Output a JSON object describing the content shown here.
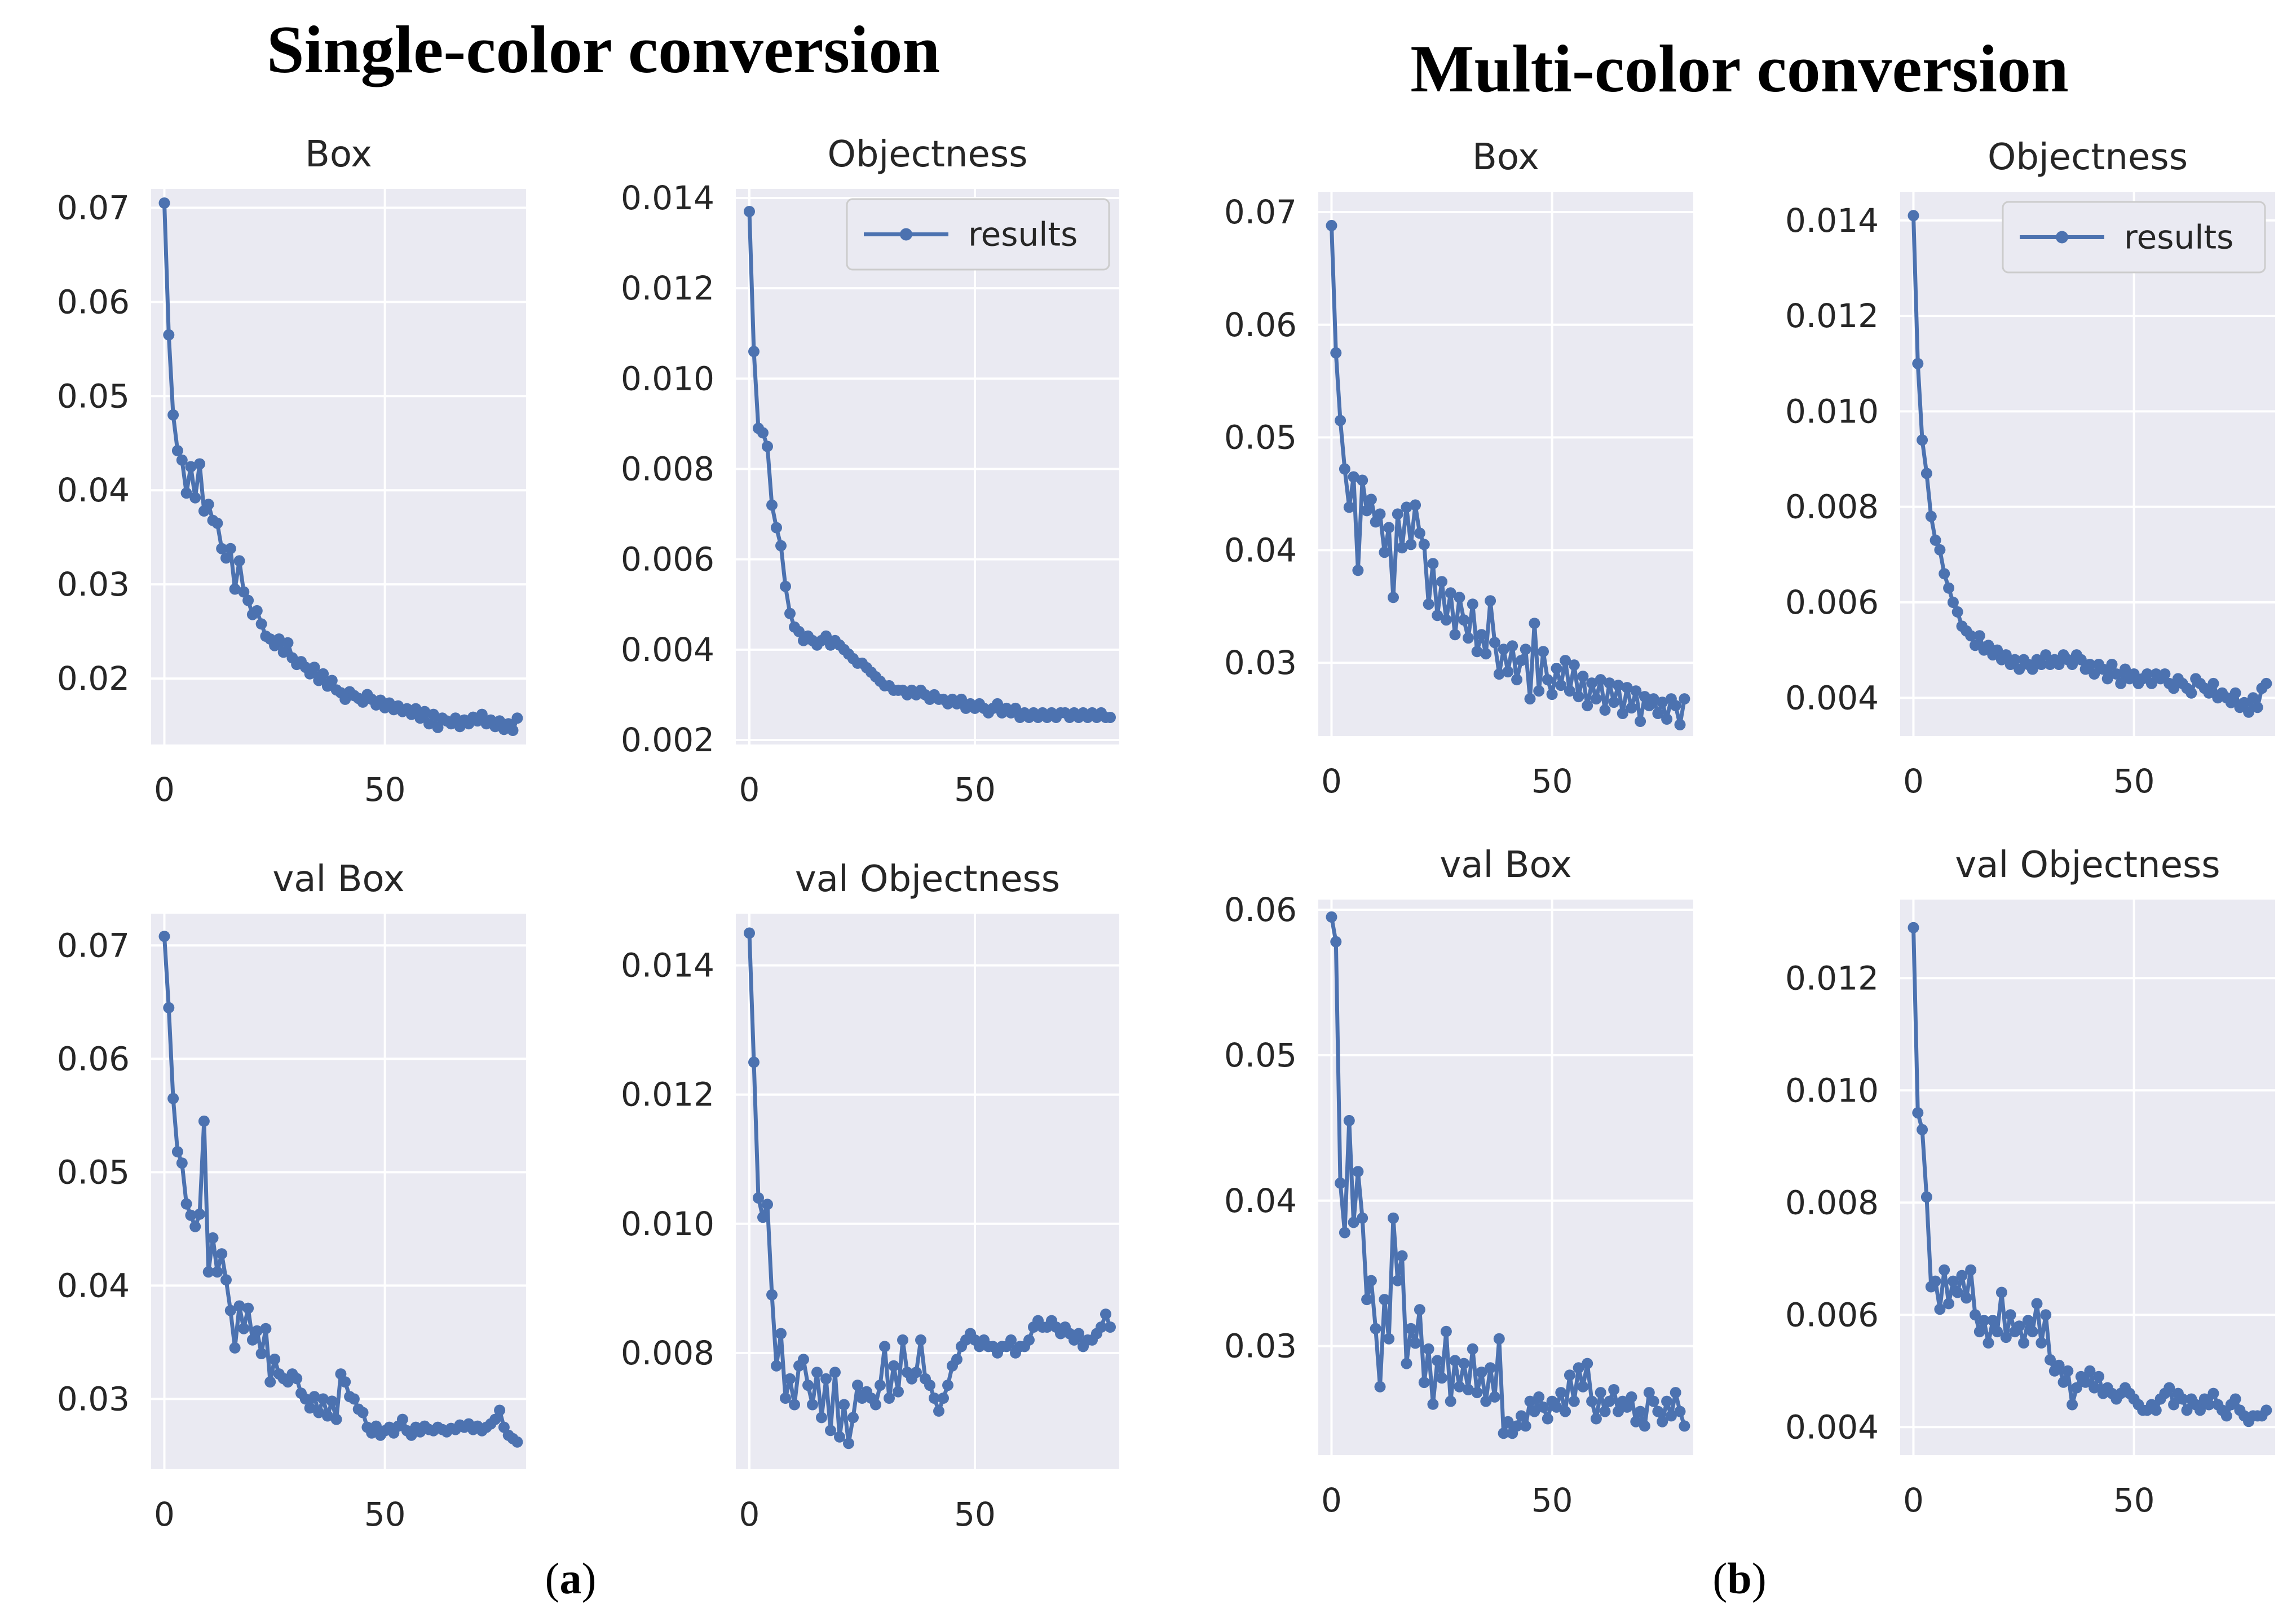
{
  "figure": {
    "left_title": "Single-color conversion",
    "right_title": "Multi-color conversion",
    "label_a_open": "(",
    "label_a_letter": "a",
    "label_a_close": ")",
    "label_b_open": "(",
    "label_b_letter": "b",
    "label_b_close": ")"
  },
  "colors": {
    "series": "#4c72b0",
    "background": "#eaeaf2",
    "grid": "#ffffff"
  },
  "chart_data": [
    {
      "id": "a-box",
      "type": "line",
      "title": "Box",
      "group": "Single-color conversion",
      "xlim": [
        -3,
        82
      ],
      "ylim": [
        0.013,
        0.072
      ],
      "xticks": [
        0,
        50
      ],
      "xtick_labels": [
        "0",
        "50"
      ],
      "yticks": [
        0.02,
        0.03,
        0.04,
        0.05,
        0.06,
        0.07
      ],
      "ytick_labels": [
        "0.02",
        "0.03",
        "0.04",
        "0.05",
        "0.06",
        "0.07"
      ],
      "legend": null,
      "series": [
        {
          "name": "results",
          "x_start": 0,
          "values": [
            0.0705,
            0.0565,
            0.048,
            0.0442,
            0.0432,
            0.0397,
            0.0425,
            0.0392,
            0.0428,
            0.0378,
            0.0385,
            0.0368,
            0.0365,
            0.0338,
            0.0328,
            0.0338,
            0.0295,
            0.0325,
            0.0292,
            0.0283,
            0.0268,
            0.0272,
            0.0258,
            0.0245,
            0.0242,
            0.0235,
            0.0242,
            0.0228,
            0.0238,
            0.0222,
            0.0215,
            0.0218,
            0.0212,
            0.0205,
            0.0212,
            0.0198,
            0.0205,
            0.0192,
            0.0198,
            0.0188,
            0.0185,
            0.0178,
            0.0186,
            0.0182,
            0.0179,
            0.0175,
            0.0183,
            0.0178,
            0.0172,
            0.0177,
            0.0169,
            0.0174,
            0.0167,
            0.0171,
            0.0165,
            0.0168,
            0.0162,
            0.0168,
            0.0158,
            0.0165,
            0.0152,
            0.0162,
            0.0148,
            0.0158,
            0.0155,
            0.0152,
            0.0158,
            0.0149,
            0.0156,
            0.0152,
            0.0159,
            0.0155,
            0.0162,
            0.0152,
            0.0156,
            0.0149,
            0.0155,
            0.0146,
            0.0152,
            0.0145,
            0.0158
          ]
        }
      ]
    },
    {
      "id": "a-obj",
      "type": "line",
      "title": "Objectness",
      "group": "Single-color conversion",
      "xlim": [
        -3,
        82
      ],
      "ylim": [
        0.0019,
        0.0142
      ],
      "xticks": [
        0,
        50
      ],
      "xtick_labels": [
        "0",
        "50"
      ],
      "yticks": [
        0.002,
        0.004,
        0.006,
        0.008,
        0.01,
        0.012,
        0.014
      ],
      "ytick_labels": [
        "0.002",
        "0.004",
        "0.006",
        "0.008",
        "0.010",
        "0.012",
        "0.014"
      ],
      "legend": {
        "label": "results",
        "position": "top-right"
      },
      "series": [
        {
          "name": "results",
          "x_start": 0,
          "values": [
            0.0137,
            0.0106,
            0.0089,
            0.0088,
            0.0085,
            0.0072,
            0.0067,
            0.0063,
            0.0054,
            0.0048,
            0.0045,
            0.0044,
            0.0042,
            0.0043,
            0.0042,
            0.0041,
            0.0042,
            0.0043,
            0.0041,
            0.0042,
            0.0041,
            0.004,
            0.0039,
            0.0038,
            0.0037,
            0.0037,
            0.0036,
            0.0035,
            0.0034,
            0.0033,
            0.0032,
            0.0032,
            0.0031,
            0.0031,
            0.0031,
            0.003,
            0.0031,
            0.003,
            0.0031,
            0.003,
            0.0029,
            0.003,
            0.0029,
            0.0029,
            0.0028,
            0.0029,
            0.0028,
            0.0029,
            0.0027,
            0.0028,
            0.0027,
            0.0028,
            0.0027,
            0.0026,
            0.0027,
            0.0028,
            0.0026,
            0.0027,
            0.0026,
            0.0027,
            0.0025,
            0.0026,
            0.0025,
            0.0026,
            0.0025,
            0.0026,
            0.0025,
            0.0026,
            0.0025,
            0.0026,
            0.0026,
            0.0025,
            0.0026,
            0.0025,
            0.0026,
            0.0025,
            0.0026,
            0.0025,
            0.0026,
            0.0025,
            0.0025
          ]
        }
      ]
    },
    {
      "id": "a-valbox",
      "type": "line",
      "title": "val Box",
      "group": "Single-color conversion",
      "xlim": [
        -3,
        82
      ],
      "ylim": [
        0.0238,
        0.0728
      ],
      "xticks": [
        0,
        50
      ],
      "xtick_labels": [
        "0",
        "50"
      ],
      "yticks": [
        0.03,
        0.04,
        0.05,
        0.06,
        0.07
      ],
      "ytick_labels": [
        "0.03",
        "0.04",
        "0.05",
        "0.06",
        "0.07"
      ],
      "legend": null,
      "series": [
        {
          "name": "results",
          "x_start": 0,
          "values": [
            0.0708,
            0.0645,
            0.0565,
            0.0518,
            0.0508,
            0.0472,
            0.0462,
            0.0452,
            0.0463,
            0.0545,
            0.0412,
            0.0442,
            0.0412,
            0.0428,
            0.0405,
            0.0378,
            0.0345,
            0.0382,
            0.0362,
            0.038,
            0.0352,
            0.036,
            0.034,
            0.0362,
            0.0315,
            0.0335,
            0.0322,
            0.0318,
            0.0315,
            0.0322,
            0.0318,
            0.0305,
            0.03,
            0.0292,
            0.0302,
            0.0288,
            0.03,
            0.0285,
            0.0298,
            0.0282,
            0.0322,
            0.0315,
            0.0302,
            0.03,
            0.0291,
            0.0288,
            0.0275,
            0.027,
            0.0276,
            0.0268,
            0.0272,
            0.0275,
            0.027,
            0.0276,
            0.0282,
            0.0272,
            0.0268,
            0.0275,
            0.0271,
            0.0276,
            0.0273,
            0.0272,
            0.0275,
            0.0273,
            0.0271,
            0.0274,
            0.0273,
            0.0277,
            0.0275,
            0.0278,
            0.0273,
            0.0276,
            0.0272,
            0.0275,
            0.0278,
            0.0282,
            0.029,
            0.0275,
            0.0268,
            0.0265,
            0.0262
          ]
        }
      ]
    },
    {
      "id": "a-valobj",
      "type": "line",
      "title": "val Objectness",
      "group": "Single-color conversion",
      "xlim": [
        -3,
        82
      ],
      "ylim": [
        0.0062,
        0.0148
      ],
      "xticks": [
        0,
        50
      ],
      "xtick_labels": [
        "0",
        "50"
      ],
      "yticks": [
        0.008,
        0.01,
        0.012,
        0.014
      ],
      "ytick_labels": [
        "0.008",
        "0.010",
        "0.012",
        "0.014"
      ],
      "legend": null,
      "series": [
        {
          "name": "results",
          "x_start": 0,
          "values": [
            0.0145,
            0.0125,
            0.0104,
            0.0101,
            0.0103,
            0.0089,
            0.0078,
            0.0083,
            0.0073,
            0.0076,
            0.0072,
            0.0078,
            0.0079,
            0.0075,
            0.0072,
            0.0077,
            0.007,
            0.0076,
            0.0068,
            0.0077,
            0.0067,
            0.0072,
            0.0066,
            0.007,
            0.0075,
            0.0073,
            0.0074,
            0.0073,
            0.0072,
            0.0075,
            0.0081,
            0.0073,
            0.0078,
            0.0074,
            0.0082,
            0.0077,
            0.0076,
            0.0077,
            0.0082,
            0.0076,
            0.0075,
            0.0073,
            0.0071,
            0.0073,
            0.0075,
            0.0078,
            0.0079,
            0.0081,
            0.0082,
            0.0083,
            0.0082,
            0.0081,
            0.0082,
            0.0081,
            0.0081,
            0.008,
            0.0081,
            0.0081,
            0.0082,
            0.008,
            0.0081,
            0.0081,
            0.0082,
            0.0084,
            0.0085,
            0.0084,
            0.0084,
            0.0085,
            0.0084,
            0.0083,
            0.0084,
            0.0083,
            0.0082,
            0.0083,
            0.0081,
            0.0082,
            0.0082,
            0.0083,
            0.0084,
            0.0086,
            0.0084
          ]
        }
      ]
    },
    {
      "id": "b-box",
      "type": "line",
      "title": "Box",
      "group": "Multi-color conversion",
      "xlim": [
        -3,
        82
      ],
      "ylim": [
        0.0235,
        0.0718
      ],
      "xticks": [
        0,
        50
      ],
      "xtick_labels": [
        "0",
        "50"
      ],
      "yticks": [
        0.03,
        0.04,
        0.05,
        0.06,
        0.07
      ],
      "ytick_labels": [
        "0.03",
        "0.04",
        "0.05",
        "0.06",
        "0.07"
      ],
      "legend": null,
      "series": [
        {
          "name": "results",
          "x_start": 0,
          "values": [
            0.0688,
            0.0575,
            0.0515,
            0.0472,
            0.0438,
            0.0465,
            0.0382,
            0.0462,
            0.0435,
            0.0445,
            0.0425,
            0.0432,
            0.0398,
            0.042,
            0.0358,
            0.0432,
            0.0402,
            0.0438,
            0.0405,
            0.044,
            0.0415,
            0.0405,
            0.0352,
            0.0388,
            0.0342,
            0.0372,
            0.0338,
            0.0362,
            0.0325,
            0.0358,
            0.0338,
            0.0322,
            0.0352,
            0.031,
            0.0325,
            0.0308,
            0.0355,
            0.0318,
            0.029,
            0.0312,
            0.0292,
            0.0315,
            0.0285,
            0.0302,
            0.0312,
            0.0268,
            0.0335,
            0.0275,
            0.031,
            0.0285,
            0.0272,
            0.0295,
            0.028,
            0.0302,
            0.0275,
            0.0298,
            0.027,
            0.0288,
            0.0262,
            0.0282,
            0.0268,
            0.0285,
            0.0258,
            0.0282,
            0.0265,
            0.028,
            0.0255,
            0.0278,
            0.026,
            0.0275,
            0.0248,
            0.027,
            0.0262,
            0.0268,
            0.0255,
            0.0265,
            0.025,
            0.0268,
            0.0262,
            0.0245,
            0.0268
          ]
        }
      ]
    },
    {
      "id": "b-obj",
      "type": "line",
      "title": "Objectness",
      "group": "Multi-color conversion",
      "xlim": [
        -3,
        82
      ],
      "ylim": [
        0.0032,
        0.0146
      ],
      "xticks": [
        0,
        50
      ],
      "xtick_labels": [
        "0",
        "50"
      ],
      "yticks": [
        0.004,
        0.006,
        0.008,
        0.01,
        0.012,
        0.014
      ],
      "ytick_labels": [
        "0.004",
        "0.006",
        "0.008",
        "0.010",
        "0.012",
        "0.014"
      ],
      "legend": {
        "label": "results",
        "position": "top-right"
      },
      "series": [
        {
          "name": "results",
          "x_start": 0,
          "values": [
            0.0141,
            0.011,
            0.0094,
            0.0087,
            0.0078,
            0.0073,
            0.0071,
            0.0066,
            0.0063,
            0.006,
            0.0058,
            0.0055,
            0.0054,
            0.0053,
            0.0051,
            0.0053,
            0.005,
            0.0051,
            0.0049,
            0.005,
            0.0048,
            0.0049,
            0.0047,
            0.0048,
            0.0046,
            0.0048,
            0.0047,
            0.0046,
            0.0048,
            0.0047,
            0.0049,
            0.0047,
            0.0048,
            0.0047,
            0.0049,
            0.0048,
            0.0047,
            0.0049,
            0.0048,
            0.0046,
            0.0047,
            0.0045,
            0.0047,
            0.0046,
            0.0044,
            0.0047,
            0.0045,
            0.0043,
            0.0046,
            0.0044,
            0.0045,
            0.0043,
            0.0044,
            0.0045,
            0.0043,
            0.0045,
            0.0044,
            0.0045,
            0.0043,
            0.0042,
            0.0044,
            0.0043,
            0.0042,
            0.0041,
            0.0044,
            0.0043,
            0.0042,
            0.0041,
            0.0043,
            0.004,
            0.0041,
            0.004,
            0.0039,
            0.0041,
            0.0038,
            0.0039,
            0.0037,
            0.004,
            0.0038,
            0.0042,
            0.0043
          ]
        }
      ]
    },
    {
      "id": "b-valbox",
      "type": "line",
      "title": "val Box",
      "group": "Multi-color conversion",
      "xlim": [
        -3,
        82
      ],
      "ylim": [
        0.0225,
        0.0607
      ],
      "xticks": [
        0,
        50
      ],
      "xtick_labels": [
        "0",
        "50"
      ],
      "yticks": [
        0.03,
        0.04,
        0.05,
        0.06
      ],
      "ytick_labels": [
        "0.03",
        "0.04",
        "0.05",
        "0.06"
      ],
      "legend": null,
      "series": [
        {
          "name": "results",
          "x_start": 0,
          "values": [
            0.0595,
            0.0578,
            0.0412,
            0.0378,
            0.0455,
            0.0385,
            0.042,
            0.0388,
            0.0332,
            0.0345,
            0.0312,
            0.0272,
            0.0332,
            0.0305,
            0.0388,
            0.0345,
            0.0362,
            0.0288,
            0.0312,
            0.0302,
            0.0325,
            0.0275,
            0.0298,
            0.026,
            0.029,
            0.0278,
            0.031,
            0.0262,
            0.029,
            0.0272,
            0.0288,
            0.027,
            0.0298,
            0.0268,
            0.0282,
            0.0262,
            0.0285,
            0.0265,
            0.0305,
            0.024,
            0.0248,
            0.024,
            0.0245,
            0.0252,
            0.0245,
            0.0262,
            0.0255,
            0.0265,
            0.0258,
            0.025,
            0.0262,
            0.0258,
            0.0268,
            0.0255,
            0.028,
            0.0262,
            0.0285,
            0.0272,
            0.0288,
            0.0262,
            0.025,
            0.0268,
            0.0255,
            0.0262,
            0.027,
            0.0255,
            0.0262,
            0.0258,
            0.0265,
            0.0248,
            0.0255,
            0.0245,
            0.0268,
            0.0262,
            0.0255,
            0.0248,
            0.0262,
            0.0252,
            0.0268,
            0.0255,
            0.0245
          ]
        }
      ]
    },
    {
      "id": "b-valobj",
      "type": "line",
      "title": "val Objectness",
      "group": "Multi-color conversion",
      "xlim": [
        -3,
        82
      ],
      "ylim": [
        0.0035,
        0.0134
      ],
      "xticks": [
        0,
        50
      ],
      "xtick_labels": [
        "0",
        "50"
      ],
      "yticks": [
        0.004,
        0.006,
        0.008,
        0.01,
        0.012
      ],
      "ytick_labels": [
        "0.004",
        "0.006",
        "0.008",
        "0.010",
        "0.012"
      ],
      "legend": null,
      "series": [
        {
          "name": "results",
          "x_start": 0,
          "values": [
            0.0129,
            0.0096,
            0.0093,
            0.0081,
            0.0065,
            0.0066,
            0.0061,
            0.0068,
            0.0062,
            0.0066,
            0.0064,
            0.0067,
            0.0063,
            0.0068,
            0.006,
            0.0057,
            0.0059,
            0.0055,
            0.0059,
            0.0057,
            0.0064,
            0.0056,
            0.006,
            0.0057,
            0.0058,
            0.0055,
            0.0059,
            0.0057,
            0.0062,
            0.0055,
            0.006,
            0.0052,
            0.005,
            0.0051,
            0.0048,
            0.005,
            0.0044,
            0.0047,
            0.0049,
            0.0048,
            0.005,
            0.0047,
            0.0049,
            0.0046,
            0.0047,
            0.0046,
            0.0045,
            0.0046,
            0.0047,
            0.0046,
            0.0045,
            0.0044,
            0.0043,
            0.0043,
            0.0044,
            0.0043,
            0.0045,
            0.0046,
            0.0047,
            0.0044,
            0.0046,
            0.0045,
            0.0043,
            0.0045,
            0.0044,
            0.0043,
            0.0045,
            0.0044,
            0.0046,
            0.0044,
            0.0043,
            0.0042,
            0.0044,
            0.0045,
            0.0043,
            0.0042,
            0.0041,
            0.0042,
            0.0042,
            0.0042,
            0.0043
          ]
        }
      ]
    }
  ]
}
